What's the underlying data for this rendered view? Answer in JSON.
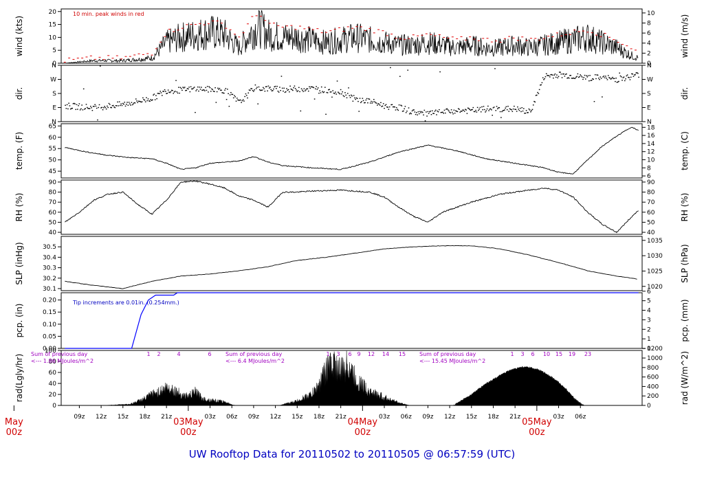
{
  "title": "UW Rooftop Data for 20110502  to  20110505 @ 06:57:59  (UTC)",
  "colors": {
    "title": "#0000c0",
    "date": "#d00000",
    "peak": "#e00000",
    "pcp": "#0000ff",
    "rad_note": "#a000c0"
  },
  "chart_data": [
    {
      "type": "line",
      "name": "wind",
      "ylabel": "wind (kts)",
      "ylabel_right": "wind (m/s)",
      "ylim": [
        0,
        21
      ],
      "yticks": [
        0,
        5,
        10,
        15,
        20
      ],
      "right_ylim": [
        0,
        10.8
      ],
      "right_yticks": [
        0,
        2,
        4,
        6,
        8,
        10
      ],
      "annotation": "10 min. peak winds in red",
      "x_hours": [
        0,
        4,
        8,
        12,
        14,
        16,
        18,
        20,
        22,
        24,
        26,
        27,
        28,
        30,
        32,
        34,
        36,
        38,
        40,
        42,
        44,
        46,
        48,
        50,
        52,
        54,
        56,
        58,
        60,
        62,
        64,
        66,
        68,
        70,
        72,
        74,
        76,
        78,
        79
      ],
      "values": [
        0,
        1,
        1,
        2,
        8,
        10,
        11,
        12,
        11,
        6,
        13,
        14,
        11,
        10,
        10,
        9,
        8,
        9,
        10,
        9,
        8,
        7,
        7,
        8,
        7,
        6,
        7,
        6,
        6,
        7,
        6,
        7,
        8,
        9,
        10,
        8,
        6,
        3,
        2
      ],
      "peaks": [
        1,
        2,
        2,
        4,
        12,
        14,
        15,
        16,
        15,
        10,
        18,
        19,
        15,
        14,
        14,
        13,
        12,
        13,
        14,
        13,
        12,
        10,
        10,
        11,
        10,
        9,
        10,
        9,
        9,
        10,
        9,
        10,
        11,
        12,
        13,
        11,
        9,
        6,
        4
      ]
    },
    {
      "type": "scatter",
      "name": "dir",
      "ylabel": "dir.",
      "ylabel_right": "dir.",
      "yticks_labels": [
        "N",
        "E",
        "S",
        "W",
        "N"
      ],
      "x_hours": [
        0,
        4,
        8,
        12,
        14,
        16,
        18,
        20,
        22,
        24,
        26,
        28,
        30,
        32,
        34,
        36,
        38,
        40,
        42,
        44,
        46,
        48,
        50,
        52,
        54,
        56,
        58,
        60,
        62,
        64,
        66,
        68,
        70,
        72,
        74,
        76,
        78,
        79
      ],
      "degrees": [
        100,
        90,
        110,
        150,
        200,
        200,
        210,
        205,
        200,
        120,
        215,
        210,
        205,
        210,
        210,
        200,
        190,
        140,
        130,
        100,
        90,
        60,
        50,
        60,
        70,
        70,
        80,
        80,
        80,
        60,
        290,
        300,
        290,
        280,
        280,
        270,
        290,
        300
      ]
    },
    {
      "type": "line",
      "name": "temp",
      "ylabel": "temp. (F)",
      "ylabel_right": "temp. (C)",
      "ylim": [
        42,
        66
      ],
      "yticks": [
        45,
        50,
        55,
        60,
        65
      ],
      "right_ylim": [
        5.5,
        18.9
      ],
      "right_yticks": [
        6,
        8,
        10,
        12,
        14,
        16,
        18
      ],
      "x_hours": [
        0,
        3,
        6,
        9,
        12,
        14,
        16,
        18,
        20,
        22,
        24,
        26,
        28,
        30,
        34,
        38,
        42,
        46,
        50,
        54,
        58,
        62,
        66,
        68,
        70,
        72,
        74,
        76,
        78,
        79
      ],
      "values": [
        55.5,
        53.5,
        52.0,
        51.0,
        50.5,
        48.5,
        45.8,
        46.5,
        48.5,
        49.0,
        49.5,
        51.5,
        49.0,
        47.5,
        46.5,
        45.8,
        49.0,
        53.5,
        56.5,
        54.0,
        50.5,
        48.5,
        46.5,
        44.5,
        43.8,
        50.0,
        56.0,
        60.5,
        64.5,
        63.0
      ]
    },
    {
      "type": "line",
      "name": "rh",
      "ylabel": "RH (%)",
      "ylabel_right": "RH (%)",
      "ylim": [
        38,
        92
      ],
      "yticks": [
        40,
        50,
        60,
        70,
        80,
        90
      ],
      "x_hours": [
        0,
        2,
        4,
        6,
        8,
        10,
        12,
        14,
        16,
        18,
        20,
        22,
        24,
        26,
        28,
        30,
        32,
        34,
        38,
        42,
        44,
        46,
        48,
        50,
        52,
        56,
        60,
        64,
        66,
        68,
        70,
        72,
        74,
        76,
        78,
        79
      ],
      "values": [
        50,
        60,
        72,
        78,
        80,
        68,
        58,
        72,
        90,
        91,
        88,
        84,
        76,
        72,
        65,
        80,
        80,
        81,
        82,
        80,
        75,
        65,
        56,
        50,
        60,
        70,
        78,
        82,
        84,
        82,
        75,
        60,
        48,
        40,
        55,
        62
      ]
    },
    {
      "type": "line",
      "name": "slp",
      "ylabel": "SLP (inHg)",
      "ylabel_right": "SLP (hPa)",
      "ylim": [
        30.08,
        30.6
      ],
      "yticks": [
        30.1,
        30.2,
        30.3,
        30.4,
        30.5
      ],
      "right_ylim": [
        1018.6,
        1036.3
      ],
      "right_yticks": [
        1020,
        1025,
        1030,
        1035
      ],
      "x_hours": [
        0,
        4,
        8,
        12,
        16,
        20,
        24,
        28,
        32,
        36,
        40,
        44,
        48,
        52,
        56,
        60,
        64,
        68,
        72,
        76,
        79
      ],
      "values": [
        30.17,
        30.13,
        30.1,
        30.17,
        30.22,
        30.24,
        30.27,
        30.31,
        30.37,
        30.4,
        30.44,
        30.48,
        30.5,
        30.51,
        30.51,
        30.48,
        30.42,
        30.35,
        30.27,
        30.22,
        30.19
      ]
    },
    {
      "type": "line",
      "name": "pcp",
      "ylabel": "pcp. (in)",
      "ylabel_right": "pcp. (mm)",
      "ylim": [
        0,
        0.23
      ],
      "yticks": [
        0.0,
        0.05,
        0.1,
        0.15,
        0.2
      ],
      "right_ylim": [
        0,
        5.84
      ],
      "right_yticks": [
        0,
        1,
        2,
        3,
        4,
        5,
        6
      ],
      "annotation": "Tip increments are 0.01in. (0.254mm.)",
      "x_hours": [
        0,
        9.2,
        10.5,
        11.5,
        12.5,
        15.0,
        15.5,
        79
      ],
      "values": [
        0,
        0,
        0.14,
        0.2,
        0.22,
        0.22,
        0.23,
        0.23
      ]
    },
    {
      "type": "area",
      "name": "rad",
      "ylabel": "rad(Lgly/hr)",
      "ylabel_right": "rad (W/m^2)",
      "ylim": [
        0,
        100
      ],
      "yticks": [
        0,
        20,
        40,
        60,
        80,
        100
      ],
      "right_ylim": [
        0,
        1160
      ],
      "right_yticks": [
        0,
        200,
        400,
        600,
        800,
        1000,
        1200
      ],
      "days": [
        {
          "note": "Sum of previous day",
          "note2": "<--- 1.86 MJoules/m^2",
          "hours": [
            "1",
            "2",
            "4",
            "6"
          ],
          "x_hours": [
            5.5,
            9,
            11,
            12,
            13,
            14,
            15,
            16,
            17,
            18,
            19,
            20,
            21,
            22,
            23,
            23.5
          ],
          "values": [
            0,
            3,
            15,
            25,
            30,
            40,
            35,
            25,
            20,
            30,
            15,
            12,
            10,
            8,
            2,
            0
          ]
        },
        {
          "note": "Sum of previous day",
          "note2": "<--- 6.4 MJoules/m^2",
          "hours": [
            "1",
            "3",
            "6",
            "9",
            "12",
            "14",
            "15"
          ],
          "x_hours": [
            29.5,
            32,
            34,
            35,
            36,
            37,
            38,
            39,
            40,
            41,
            42,
            43,
            44,
            45,
            46,
            47,
            47.5
          ],
          "values": [
            0,
            10,
            25,
            45,
            80,
            95,
            75,
            95,
            60,
            45,
            30,
            25,
            18,
            12,
            6,
            2,
            0
          ]
        },
        {
          "note": "Sum of previous day",
          "note2": "<--- 15.45 MJoules/m^2",
          "hours": [
            "1",
            "3",
            "6",
            "10",
            "15",
            "19",
            "23"
          ],
          "x_hours": [
            53.5,
            56,
            58,
            60,
            61,
            62,
            63,
            64,
            65,
            66,
            67,
            68,
            69,
            70,
            71,
            71.5
          ],
          "values": [
            0,
            20,
            40,
            55,
            62,
            67,
            70,
            69,
            66,
            60,
            52,
            42,
            30,
            15,
            4,
            0
          ]
        }
      ]
    }
  ],
  "x_axis": {
    "start_hour": 7,
    "ticks": [
      "09z",
      "12z",
      "15z",
      "18z",
      "21z",
      "03z",
      "06z",
      "09z",
      "12z",
      "15z",
      "18z",
      "21z",
      "03z",
      "06z",
      "09z",
      "12z",
      "15z",
      "18z",
      "21z",
      "03z",
      "06z"
    ],
    "tick_hours": [
      2,
      5,
      8,
      11,
      14,
      20,
      23,
      26,
      29,
      32,
      35,
      38,
      44,
      47,
      50,
      53,
      56,
      59,
      62,
      68,
      71
    ],
    "date_labels": [
      {
        "day": "May",
        "time": "00z",
        "hour": -7
      },
      {
        "day": "03May",
        "time": "00z",
        "hour": 17
      },
      {
        "day": "04May",
        "time": "00z",
        "hour": 41
      },
      {
        "day": "05May",
        "time": "00z",
        "hour": 65
      }
    ]
  }
}
